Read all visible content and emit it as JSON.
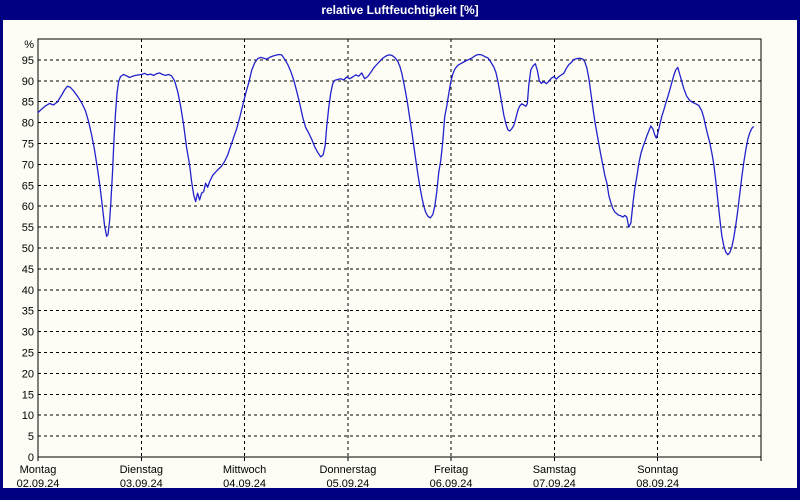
{
  "window": {
    "title": "relative Luftfeuchtigkeit [%]",
    "title_bar_color": "#000080",
    "client_background": "#fdfdf5"
  },
  "chart_data": {
    "type": "line",
    "title": "relative Luftfeuchtigkeit [%]",
    "unit_label": "%",
    "line_color": "#2222cc",
    "grid_color": "#000000",
    "grid_style": "dashed",
    "legend": "none",
    "ylim": [
      0,
      100
    ],
    "ytick_step": 5,
    "yticks": [
      [
        100,
        "%"
      ],
      [
        95,
        "95"
      ],
      [
        90,
        "90"
      ],
      [
        85,
        "85"
      ],
      [
        80,
        "80"
      ],
      [
        75,
        "75"
      ],
      [
        70,
        "70"
      ],
      [
        65,
        "65"
      ],
      [
        60,
        "60"
      ],
      [
        55,
        "55"
      ],
      [
        50,
        "50"
      ],
      [
        45,
        "45"
      ],
      [
        40,
        "40"
      ],
      [
        35,
        "35"
      ],
      [
        30,
        "30"
      ],
      [
        25,
        "25"
      ],
      [
        20,
        "20"
      ],
      [
        15,
        "15"
      ],
      [
        10,
        "10"
      ],
      [
        5,
        "5"
      ],
      [
        0,
        "0"
      ]
    ],
    "xlim_days": [
      0,
      7
    ],
    "days": [
      {
        "name": "Montag",
        "date": "02.09.24"
      },
      {
        "name": "Dienstag",
        "date": "03.09.24"
      },
      {
        "name": "Mittwoch",
        "date": "04.09.24"
      },
      {
        "name": "Donnerstag",
        "date": "05.09.24"
      },
      {
        "name": "Freitag",
        "date": "06.09.24"
      },
      {
        "name": "Samstag",
        "date": "07.09.24"
      },
      {
        "name": "Sonntag",
        "date": "08.09.24"
      }
    ],
    "series": [
      {
        "name": "relative Luftfeuchtigkeit",
        "unit": "%",
        "points": [
          [
            0,
            82.4
          ],
          [
            0.034,
            83.2
          ],
          [
            0.073,
            84
          ],
          [
            0.111,
            84.6
          ],
          [
            0.15,
            84.2
          ],
          [
            0.189,
            85
          ],
          [
            0.228,
            86.5
          ],
          [
            0.257,
            87.8
          ],
          [
            0.286,
            88.7
          ],
          [
            0.315,
            88.4
          ],
          [
            0.344,
            87.6
          ],
          [
            0.383,
            86.3
          ],
          [
            0.421,
            84.8
          ],
          [
            0.46,
            82.8
          ],
          [
            0.489,
            80.3
          ],
          [
            0.518,
            77.2
          ],
          [
            0.547,
            73.5
          ],
          [
            0.577,
            68.8
          ],
          [
            0.601,
            64.5
          ],
          [
            0.625,
            59.5
          ],
          [
            0.644,
            55.5
          ],
          [
            0.664,
            52.8
          ],
          [
            0.678,
            53.2
          ],
          [
            0.693,
            56.5
          ],
          [
            0.707,
            61.5
          ],
          [
            0.722,
            68.5
          ],
          [
            0.736,
            76
          ],
          [
            0.751,
            82.5
          ],
          [
            0.765,
            87
          ],
          [
            0.78,
            89.8
          ],
          [
            0.799,
            91
          ],
          [
            0.828,
            91.5
          ],
          [
            0.857,
            91.2
          ],
          [
            0.887,
            90.8
          ],
          [
            0.916,
            91.1
          ],
          [
            0.945,
            91.3
          ],
          [
            0.974,
            91.4
          ],
          [
            1.003,
            91.5
          ],
          [
            1.032,
            91.8
          ],
          [
            1.061,
            91.4
          ],
          [
            1.09,
            91.6
          ],
          [
            1.119,
            91.3
          ],
          [
            1.148,
            91.7
          ],
          [
            1.177,
            91.9
          ],
          [
            1.206,
            91.5
          ],
          [
            1.235,
            91.3
          ],
          [
            1.264,
            91.5
          ],
          [
            1.293,
            91.2
          ],
          [
            1.323,
            90
          ],
          [
            1.352,
            87.5
          ],
          [
            1.381,
            84
          ],
          [
            1.41,
            79.5
          ],
          [
            1.439,
            74
          ],
          [
            1.468,
            69.9
          ],
          [
            1.487,
            65.9
          ],
          [
            1.507,
            62.7
          ],
          [
            1.526,
            61.1
          ],
          [
            1.545,
            63.1
          ],
          [
            1.565,
            61.5
          ],
          [
            1.584,
            63.1
          ],
          [
            1.604,
            63.5
          ],
          [
            1.623,
            65.5
          ],
          [
            1.642,
            64.5
          ],
          [
            1.662,
            65.9
          ],
          [
            1.691,
            67.4
          ],
          [
            1.72,
            68.2
          ],
          [
            1.749,
            68.9
          ],
          [
            1.778,
            69.6
          ],
          [
            1.807,
            70.7
          ],
          [
            1.836,
            72.2
          ],
          [
            1.865,
            74.3
          ],
          [
            1.894,
            76.4
          ],
          [
            1.923,
            78.5
          ],
          [
            1.952,
            81.1
          ],
          [
            1.981,
            84
          ],
          [
            2.011,
            87
          ],
          [
            2.04,
            89.5
          ],
          [
            2.069,
            92.5
          ],
          [
            2.098,
            94.3
          ],
          [
            2.127,
            95.3
          ],
          [
            2.156,
            95.6
          ],
          [
            2.185,
            95.4
          ],
          [
            2.214,
            95.2
          ],
          [
            2.243,
            95.6
          ],
          [
            2.272,
            95.9
          ],
          [
            2.301,
            96.1
          ],
          [
            2.33,
            96.3
          ],
          [
            2.359,
            96.2
          ],
          [
            2.388,
            95.2
          ],
          [
            2.417,
            94
          ],
          [
            2.447,
            92.3
          ],
          [
            2.476,
            90.2
          ],
          [
            2.505,
            87.5
          ],
          [
            2.534,
            84.6
          ],
          [
            2.563,
            81.3
          ],
          [
            2.592,
            78.8
          ],
          [
            2.621,
            77.5
          ],
          [
            2.65,
            76
          ],
          [
            2.679,
            74.2
          ],
          [
            2.708,
            72.9
          ],
          [
            2.737,
            71.8
          ],
          [
            2.761,
            72.3
          ],
          [
            2.781,
            74.6
          ],
          [
            2.795,
            79
          ],
          [
            2.815,
            83.5
          ],
          [
            2.834,
            87
          ],
          [
            2.853,
            89.3
          ],
          [
            2.873,
            90.1
          ],
          [
            2.902,
            90.3
          ],
          [
            2.931,
            90.5
          ],
          [
            2.96,
            90.2
          ],
          [
            2.989,
            90.9
          ],
          [
            3.018,
            90.5
          ],
          [
            3.047,
            90.9
          ],
          [
            3.076,
            91.4
          ],
          [
            3.105,
            91.1
          ],
          [
            3.134,
            91.9
          ],
          [
            3.163,
            90.5
          ],
          [
            3.192,
            91
          ],
          [
            3.222,
            92
          ],
          [
            3.251,
            93.1
          ],
          [
            3.28,
            93.9
          ],
          [
            3.309,
            94.7
          ],
          [
            3.338,
            95.4
          ],
          [
            3.367,
            95.9
          ],
          [
            3.396,
            96.2
          ],
          [
            3.425,
            96.1
          ],
          [
            3.454,
            95.6
          ],
          [
            3.483,
            94.7
          ],
          [
            3.503,
            93.5
          ],
          [
            3.522,
            91.8
          ],
          [
            3.541,
            89.6
          ],
          [
            3.561,
            87
          ],
          [
            3.58,
            84.2
          ],
          [
            3.6,
            81
          ],
          [
            3.619,
            77.8
          ],
          [
            3.638,
            74.4
          ],
          [
            3.658,
            71
          ],
          [
            3.677,
            67.8
          ],
          [
            3.697,
            64.8
          ],
          [
            3.716,
            62.2
          ],
          [
            3.735,
            60
          ],
          [
            3.755,
            58.5
          ],
          [
            3.774,
            57.6
          ],
          [
            3.798,
            57.2
          ],
          [
            3.822,
            58
          ],
          [
            3.842,
            60
          ],
          [
            3.861,
            63.5
          ],
          [
            3.88,
            68
          ],
          [
            3.9,
            71
          ],
          [
            3.919,
            75.5
          ],
          [
            3.938,
            81.4
          ],
          [
            3.958,
            84
          ],
          [
            3.977,
            87
          ],
          [
            3.997,
            89.8
          ],
          [
            4.016,
            91.6
          ],
          [
            4.035,
            92.8
          ],
          [
            4.064,
            93.7
          ],
          [
            4.093,
            94.1
          ],
          [
            4.122,
            94.5
          ],
          [
            4.152,
            94.9
          ],
          [
            4.181,
            95.2
          ],
          [
            4.21,
            95.6
          ],
          [
            4.239,
            96.1
          ],
          [
            4.268,
            96.3
          ],
          [
            4.297,
            96.2
          ],
          [
            4.326,
            95.8
          ],
          [
            4.355,
            95.5
          ],
          [
            4.384,
            94.5
          ],
          [
            4.413,
            93.3
          ],
          [
            4.433,
            92
          ],
          [
            4.452,
            90
          ],
          [
            4.471,
            87.4
          ],
          [
            4.491,
            84.5
          ],
          [
            4.51,
            81.8
          ],
          [
            4.529,
            79.8
          ],
          [
            4.549,
            78.3
          ],
          [
            4.568,
            78
          ],
          [
            4.588,
            78.6
          ],
          [
            4.607,
            79.3
          ],
          [
            4.626,
            81
          ],
          [
            4.646,
            83
          ],
          [
            4.665,
            84
          ],
          [
            4.684,
            84.5
          ],
          [
            4.704,
            84.2
          ],
          [
            4.723,
            83.9
          ],
          [
            4.737,
            84.5
          ],
          [
            4.752,
            89
          ],
          [
            4.771,
            92.6
          ],
          [
            4.791,
            93.5
          ],
          [
            4.815,
            94.1
          ],
          [
            4.834,
            92.5
          ],
          [
            4.854,
            90
          ],
          [
            4.873,
            89.4
          ],
          [
            4.897,
            89.8
          ],
          [
            4.922,
            89.3
          ],
          [
            4.946,
            89.9
          ],
          [
            4.97,
            90.6
          ],
          [
            4.994,
            91
          ],
          [
            5.019,
            90.4
          ],
          [
            5.043,
            91
          ],
          [
            5.067,
            91.4
          ],
          [
            5.091,
            91.8
          ],
          [
            5.116,
            93
          ],
          [
            5.14,
            93.9
          ],
          [
            5.164,
            94.4
          ],
          [
            5.188,
            95.1
          ],
          [
            5.217,
            95.3
          ],
          [
            5.246,
            95.4
          ],
          [
            5.276,
            95.2
          ],
          [
            5.295,
            94.5
          ],
          [
            5.314,
            93
          ],
          [
            5.334,
            90.5
          ],
          [
            5.353,
            87
          ],
          [
            5.372,
            83.5
          ],
          [
            5.392,
            80.2
          ],
          [
            5.411,
            77.5
          ],
          [
            5.43,
            74.9
          ],
          [
            5.45,
            72.2
          ],
          [
            5.469,
            69.8
          ],
          [
            5.488,
            67.4
          ],
          [
            5.508,
            65.5
          ],
          [
            5.527,
            62.5
          ],
          [
            5.546,
            60.9
          ],
          [
            5.566,
            59.4
          ],
          [
            5.585,
            58.6
          ],
          [
            5.604,
            58.2
          ],
          [
            5.624,
            57.8
          ],
          [
            5.643,
            57.7
          ],
          [
            5.662,
            57.4
          ],
          [
            5.682,
            57.8
          ],
          [
            5.701,
            57.4
          ],
          [
            5.72,
            55
          ],
          [
            5.74,
            56
          ],
          [
            5.762,
            61
          ],
          [
            5.778,
            64.2
          ],
          [
            5.798,
            67.2
          ],
          [
            5.817,
            70.2
          ],
          [
            5.837,
            72.6
          ],
          [
            5.856,
            74.1
          ],
          [
            5.875,
            75.4
          ],
          [
            5.894,
            76.8
          ],
          [
            5.914,
            78
          ],
          [
            5.933,
            79.2
          ],
          [
            5.953,
            78.5
          ],
          [
            5.972,
            77
          ],
          [
            5.986,
            76.3
          ],
          [
            6.001,
            77.4
          ],
          [
            6.02,
            79.5
          ],
          [
            6.04,
            81.5
          ],
          [
            6.059,
            83
          ],
          [
            6.078,
            84.7
          ],
          [
            6.098,
            86.2
          ],
          [
            6.117,
            87.8
          ],
          [
            6.136,
            89.6
          ],
          [
            6.156,
            91.3
          ],
          [
            6.175,
            92.6
          ],
          [
            6.194,
            93.2
          ],
          [
            6.214,
            91.5
          ],
          [
            6.233,
            89.8
          ],
          [
            6.252,
            88.2
          ],
          [
            6.281,
            86.3
          ],
          [
            6.31,
            85.3
          ],
          [
            6.34,
            84.8
          ],
          [
            6.369,
            84.5
          ],
          [
            6.398,
            84.1
          ],
          [
            6.427,
            82.8
          ],
          [
            6.446,
            81.2
          ],
          [
            6.466,
            79
          ],
          [
            6.485,
            77
          ],
          [
            6.504,
            75.2
          ],
          [
            6.524,
            72.8
          ],
          [
            6.543,
            70
          ],
          [
            6.562,
            66
          ],
          [
            6.582,
            61.5
          ],
          [
            6.601,
            57
          ],
          [
            6.62,
            53
          ],
          [
            6.64,
            50.5
          ],
          [
            6.659,
            49
          ],
          [
            6.679,
            48.4
          ],
          [
            6.698,
            48.9
          ],
          [
            6.717,
            50.2
          ],
          [
            6.737,
            52.5
          ],
          [
            6.756,
            55.5
          ],
          [
            6.775,
            59
          ],
          [
            6.795,
            63
          ],
          [
            6.814,
            67
          ],
          [
            6.833,
            70.5
          ],
          [
            6.853,
            73.5
          ],
          [
            6.872,
            76
          ],
          [
            6.891,
            77.5
          ],
          [
            6.911,
            78.6
          ],
          [
            6.925,
            79
          ]
        ]
      }
    ]
  }
}
